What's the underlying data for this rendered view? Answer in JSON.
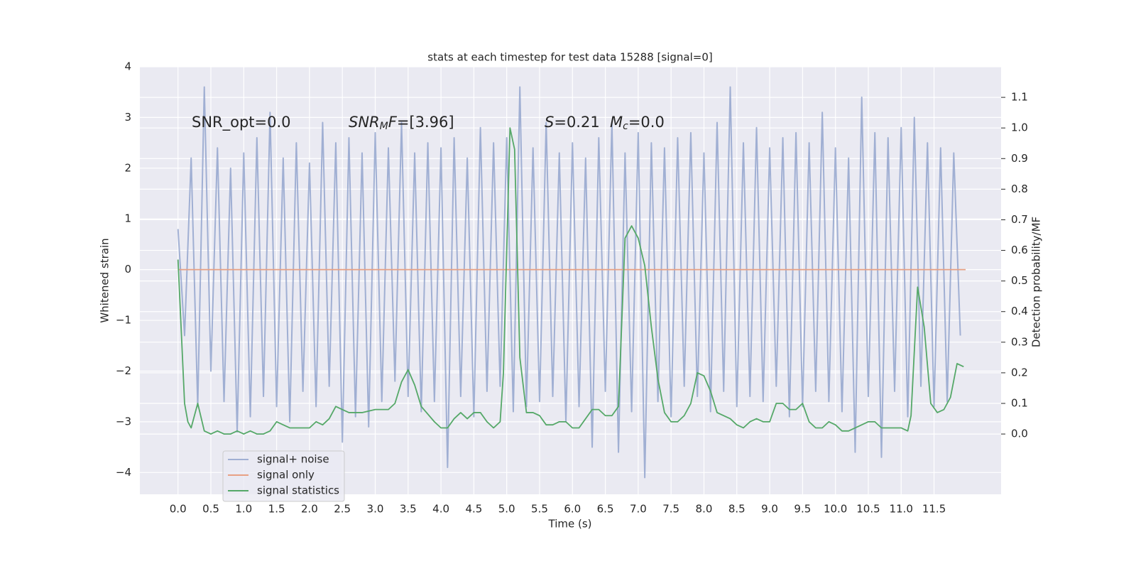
{
  "chart_data": {
    "type": "line",
    "title": "stats at each timestep for test data 15288 [signal=0]",
    "xlabel": "Time (s)",
    "ylabel": "Whitened strain",
    "y2label": "Detection probability/MF",
    "xlim": [
      -0.58,
      12.52
    ],
    "ylim": [
      -4.43,
      4.0
    ],
    "y2lim": [
      -0.197,
      1.2
    ],
    "xticks": [
      {
        "value": 0,
        "label": "0.0"
      },
      {
        "value": 0.5,
        "label": "0.5"
      },
      {
        "value": 1,
        "label": "1.0"
      },
      {
        "value": 1.5,
        "label": "1.5"
      },
      {
        "value": 2,
        "label": "2.0"
      },
      {
        "value": 2.5,
        "label": "2.5"
      },
      {
        "value": 3,
        "label": "3.0"
      },
      {
        "value": 3.5,
        "label": "3.5"
      },
      {
        "value": 4,
        "label": "4.0"
      },
      {
        "value": 4.5,
        "label": "4.5"
      },
      {
        "value": 5,
        "label": "5.0"
      },
      {
        "value": 5.5,
        "label": "5.5"
      },
      {
        "value": 6,
        "label": "6.0"
      },
      {
        "value": 6.5,
        "label": "6.5"
      },
      {
        "value": 7,
        "label": "7.0"
      },
      {
        "value": 7.5,
        "label": "7.5"
      },
      {
        "value": 8,
        "label": "8.0"
      },
      {
        "value": 8.5,
        "label": "8.5"
      },
      {
        "value": 9,
        "label": "9.0"
      },
      {
        "value": 9.5,
        "label": "9.5"
      },
      {
        "value": 10,
        "label": "10.0"
      },
      {
        "value": 10.5,
        "label": "10.5"
      },
      {
        "value": 11,
        "label": "11.0"
      },
      {
        "value": 11.5,
        "label": "11.5"
      }
    ],
    "yticks": [
      {
        "value": -4,
        "label": "−4"
      },
      {
        "value": -3,
        "label": "−3"
      },
      {
        "value": -2,
        "label": "−2"
      },
      {
        "value": -1,
        "label": "−1"
      },
      0,
      1,
      2,
      3,
      4
    ],
    "y2ticks": [
      {
        "value": 0,
        "label": "0.0"
      },
      0.1,
      0.2,
      0.3,
      0.4,
      0.5,
      0.6,
      0.7,
      0.8,
      0.9,
      {
        "value": 1,
        "label": "1.0"
      },
      1.1
    ],
    "grid": true,
    "legend": "lower left",
    "annotations": [
      [
        {
          "text": "SNR_opt=0.0",
          "italic": false
        }
      ],
      [
        {
          "text": "SNR",
          "italic": true
        },
        {
          "text": "M",
          "italic": true,
          "subscript": true
        },
        {
          "text": "F",
          "italic": true
        },
        {
          "text": "=[3.96]",
          "italic": false
        }
      ],
      [
        {
          "text": "S",
          "italic": true
        },
        {
          "text": "=0.21",
          "italic": false
        }
      ],
      [
        {
          "text": "M",
          "italic": true
        },
        {
          "text": "c",
          "italic": true,
          "subscript": true
        },
        {
          "text": "=0.0",
          "italic": false
        }
      ]
    ],
    "series": [
      {
        "name": "signal+ noise",
        "color": "#8da0cb",
        "opacity": 0.8,
        "x": [
          0.0,
          0.1,
          0.2,
          0.3,
          0.4,
          0.5,
          0.6,
          0.7,
          0.8,
          0.9,
          1.0,
          1.1,
          1.2,
          1.3,
          1.4,
          1.5,
          1.6,
          1.7,
          1.8,
          1.9,
          2.0,
          2.1,
          2.2,
          2.3,
          2.4,
          2.5,
          2.6,
          2.7,
          2.8,
          2.9,
          3.0,
          3.1,
          3.2,
          3.3,
          3.4,
          3.5,
          3.6,
          3.7,
          3.8,
          3.9,
          4.0,
          4.1,
          4.2,
          4.3,
          4.4,
          4.5,
          4.6,
          4.7,
          4.8,
          4.9,
          5.0,
          5.1,
          5.2,
          5.3,
          5.4,
          5.5,
          5.6,
          5.7,
          5.8,
          5.9,
          6.0,
          6.1,
          6.2,
          6.3,
          6.4,
          6.5,
          6.6,
          6.7,
          6.8,
          6.9,
          7.0,
          7.1,
          7.2,
          7.3,
          7.4,
          7.5,
          7.6,
          7.7,
          7.8,
          7.9,
          8.0,
          8.1,
          8.2,
          8.3,
          8.4,
          8.5,
          8.6,
          8.7,
          8.8,
          8.9,
          9.0,
          9.1,
          9.2,
          9.3,
          9.4,
          9.5,
          9.6,
          9.7,
          9.8,
          9.9,
          10.0,
          10.1,
          10.2,
          10.3,
          10.4,
          10.5,
          10.6,
          10.7,
          10.8,
          10.9,
          11.0,
          11.1,
          11.2,
          11.3,
          11.4,
          11.5,
          11.6,
          11.7,
          11.8,
          11.9
        ],
        "values": [
          0.8,
          -1.3,
          2.2,
          -2.7,
          3.6,
          -2.0,
          2.4,
          -2.6,
          2.0,
          -3.2,
          2.3,
          -2.9,
          2.6,
          -2.5,
          3.1,
          -2.7,
          2.2,
          -3.0,
          2.5,
          -2.4,
          2.1,
          -2.7,
          2.9,
          -2.3,
          2.5,
          -3.4,
          2.6,
          -2.9,
          2.3,
          -3.1,
          2.7,
          -2.6,
          2.4,
          -2.2,
          2.9,
          -2.5,
          2.3,
          -2.8,
          2.5,
          -2.6,
          2.4,
          -3.9,
          2.6,
          -2.5,
          2.2,
          -2.9,
          2.8,
          -2.4,
          2.5,
          -2.3,
          2.6,
          -2.8,
          3.6,
          -2.7,
          2.4,
          -2.6,
          2.9,
          -2.5,
          2.3,
          -3.0,
          2.5,
          -2.7,
          2.2,
          -3.5,
          2.6,
          -2.4,
          2.9,
          -3.6,
          2.3,
          -2.8,
          2.7,
          -4.1,
          2.5,
          -2.6,
          2.4,
          -2.9,
          2.6,
          -2.3,
          2.7,
          -2.5,
          2.3,
          -2.8,
          2.9,
          -2.4,
          3.6,
          -2.7,
          2.5,
          -2.5,
          2.8,
          -2.6,
          2.4,
          -2.3,
          2.6,
          -2.9,
          2.7,
          -2.7,
          2.5,
          -2.4,
          3.1,
          -2.6,
          2.4,
          -2.8,
          2.2,
          -3.6,
          3.4,
          -2.5,
          2.7,
          -3.7,
          2.6,
          -2.4,
          2.8,
          -2.9,
          3.0,
          -2.3,
          2.5,
          -2.7,
          2.4,
          -2.6,
          2.3,
          -1.3
        ]
      },
      {
        "name": "signal only",
        "color": "#e8a184",
        "opacity": 1,
        "x": [
          0.0,
          11.98
        ],
        "values": [
          0,
          0
        ]
      },
      {
        "name": "signal statistics",
        "color": "#55a868",
        "opacity": 1,
        "axis": "y2",
        "x": [
          0.0,
          0.1,
          0.15,
          0.2,
          0.3,
          0.4,
          0.5,
          0.6,
          0.7,
          0.8,
          0.9,
          1.0,
          1.1,
          1.2,
          1.3,
          1.4,
          1.5,
          1.6,
          1.7,
          1.8,
          2.0,
          2.1,
          2.2,
          2.3,
          2.4,
          2.5,
          2.6,
          2.8,
          3.0,
          3.2,
          3.3,
          3.4,
          3.5,
          3.6,
          3.7,
          3.9,
          4.0,
          4.1,
          4.2,
          4.3,
          4.4,
          4.5,
          4.6,
          4.7,
          4.8,
          4.9,
          4.95,
          5.05,
          5.12,
          5.2,
          5.3,
          5.4,
          5.5,
          5.6,
          5.7,
          5.8,
          5.9,
          6.0,
          6.1,
          6.2,
          6.3,
          6.4,
          6.5,
          6.6,
          6.7,
          6.8,
          6.9,
          7.0,
          7.1,
          7.2,
          7.3,
          7.4,
          7.5,
          7.6,
          7.7,
          7.8,
          7.9,
          8.0,
          8.1,
          8.2,
          8.4,
          8.5,
          8.6,
          8.7,
          8.8,
          8.9,
          9.0,
          9.1,
          9.2,
          9.3,
          9.4,
          9.5,
          9.6,
          9.7,
          9.8,
          9.9,
          10.0,
          10.1,
          10.2,
          10.4,
          10.5,
          10.6,
          10.7,
          10.8,
          11.0,
          11.1,
          11.15,
          11.25,
          11.35,
          11.45,
          11.55,
          11.65,
          11.75,
          11.85,
          11.95
        ],
        "values": [
          0.57,
          0.1,
          0.04,
          0.02,
          0.1,
          0.01,
          0.0,
          0.01,
          0.0,
          0.0,
          0.01,
          0.0,
          0.01,
          0.0,
          0.0,
          0.01,
          0.04,
          0.03,
          0.02,
          0.02,
          0.02,
          0.04,
          0.03,
          0.05,
          0.09,
          0.08,
          0.07,
          0.07,
          0.08,
          0.08,
          0.1,
          0.17,
          0.21,
          0.16,
          0.09,
          0.04,
          0.02,
          0.02,
          0.05,
          0.07,
          0.05,
          0.07,
          0.07,
          0.04,
          0.02,
          0.04,
          0.2,
          1.0,
          0.93,
          0.25,
          0.07,
          0.07,
          0.06,
          0.03,
          0.03,
          0.04,
          0.04,
          0.02,
          0.02,
          0.05,
          0.08,
          0.08,
          0.06,
          0.06,
          0.09,
          0.64,
          0.68,
          0.64,
          0.55,
          0.35,
          0.18,
          0.07,
          0.04,
          0.04,
          0.06,
          0.1,
          0.2,
          0.19,
          0.14,
          0.07,
          0.05,
          0.03,
          0.02,
          0.04,
          0.05,
          0.04,
          0.04,
          0.1,
          0.1,
          0.08,
          0.08,
          0.1,
          0.04,
          0.02,
          0.02,
          0.04,
          0.03,
          0.01,
          0.01,
          0.03,
          0.04,
          0.04,
          0.02,
          0.02,
          0.02,
          0.01,
          0.06,
          0.48,
          0.35,
          0.1,
          0.07,
          0.08,
          0.12,
          0.23,
          0.22
        ]
      }
    ]
  }
}
